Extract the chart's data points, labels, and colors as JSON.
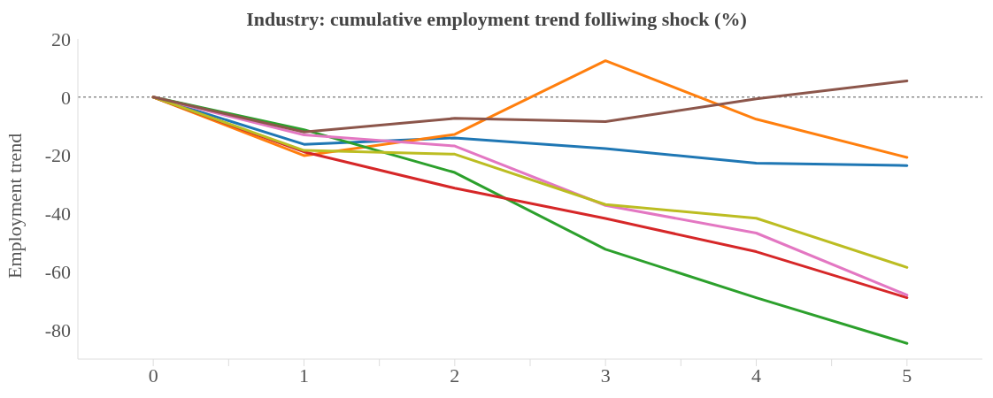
{
  "chart_data": {
    "type": "line",
    "title": "Industry: cumulative employment trend folliwing shock (%)",
    "ylabel": "Employment trend",
    "x": [
      0,
      1,
      2,
      3,
      4,
      5
    ],
    "series": [
      {
        "color": "#1f77b4",
        "values": [
          0,
          -16.2,
          -14,
          -17.7,
          -22.7,
          -23.5
        ]
      },
      {
        "color": "#ff7f0e",
        "values": [
          0,
          -20.1,
          -12.8,
          12.5,
          -7.6,
          -20.7
        ]
      },
      {
        "color": "#2ca02c",
        "values": [
          0,
          -11.2,
          -25.9,
          -52.3,
          -68.9,
          -84.6
        ]
      },
      {
        "color": "#d62728",
        "values": [
          0,
          -18.8,
          -31.3,
          -41.7,
          -53.1,
          -68.9
        ]
      },
      {
        "color": "#e377c2",
        "values": [
          0,
          -13,
          -16.8,
          -37.2,
          -46.7,
          -68
        ]
      },
      {
        "color": "#bcbd22",
        "values": [
          0,
          -18.3,
          -19.6,
          -36.9,
          -41.6,
          -58.5
        ]
      },
      {
        "color": "#8c564b",
        "values": [
          0,
          -12,
          -7.3,
          -8.4,
          -0.6,
          5.6
        ]
      }
    ],
    "xlim": [
      -0.5,
      5.5
    ],
    "xticks": [
      0,
      {
        "value": 0.5,
        "label": null
      },
      1,
      {
        "value": 1.5,
        "label": null
      },
      2,
      {
        "value": 2.5,
        "label": null
      },
      3,
      {
        "value": 3.5,
        "label": null
      },
      4,
      {
        "value": 4.5,
        "label": null
      },
      5
    ],
    "ylim": [
      -90,
      20
    ],
    "yticks": [
      -80,
      -60,
      -40,
      -20,
      0,
      20
    ],
    "ref_lines": [
      {
        "axis": "y",
        "value": 0,
        "color": "#555555",
        "line_style": "dashed"
      }
    ],
    "grid": false,
    "legend": false,
    "marker": "none",
    "line_style": "solid"
  }
}
